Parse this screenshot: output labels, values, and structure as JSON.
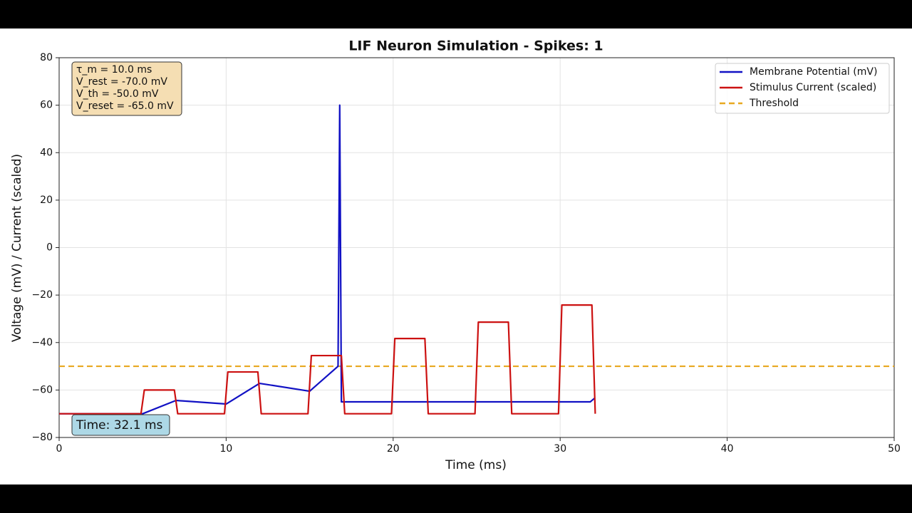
{
  "chart_data": {
    "type": "line",
    "title": "LIF Neuron Simulation - Spikes: 1",
    "x_label": "Time (ms)",
    "y_label": "Voltage (mV) / Current (scaled)",
    "xlim": [
      0,
      50
    ],
    "ylim": [
      -80,
      80
    ],
    "xticks": [
      0,
      10,
      20,
      30,
      40,
      50
    ],
    "yticks": [
      {
        "value": -80,
        "label": "−80"
      },
      {
        "value": -60,
        "label": "−60"
      },
      {
        "value": -40,
        "label": "−40"
      },
      {
        "value": -20,
        "label": "−20"
      },
      0,
      20,
      40,
      60,
      80
    ],
    "grid": true,
    "legend": "upper right",
    "series": [
      {
        "name": "Membrane Potential (mV)",
        "color": "#1111c4",
        "style": "solid",
        "x": [
          0,
          5,
          7,
          10,
          12,
          15,
          16.7,
          16.8,
          16.9,
          31.8,
          32.05
        ],
        "values": [
          -70,
          -70,
          -64.4,
          -65.9,
          -57.2,
          -60.5,
          -50,
          60,
          -65,
          -65,
          -63.5
        ]
      },
      {
        "name": "Stimulus Current (scaled)",
        "color": "#cc1111",
        "style": "solid",
        "x": [
          0,
          4.9,
          5.1,
          6.9,
          7.1,
          9.9,
          10.1,
          11.9,
          12.1,
          14.9,
          15.1,
          16.9,
          17.1,
          19.9,
          20.1,
          21.9,
          22.1,
          24.9,
          25.1,
          26.9,
          27.1,
          29.9,
          30.1,
          31.9,
          32.1
        ],
        "values": [
          -70,
          -70,
          -60,
          -60,
          -70,
          -70,
          -52.4,
          -52.4,
          -70,
          -70,
          -45.5,
          -45.5,
          -70,
          -70,
          -38.3,
          -38.3,
          -70,
          -70,
          -31.4,
          -31.4,
          -70,
          -70,
          -24.2,
          -24.2,
          -70
        ]
      },
      {
        "name": "Threshold",
        "color": "#e8a820",
        "style": "dashed",
        "x": [
          0,
          50
        ],
        "values": [
          -50,
          -50
        ]
      }
    ],
    "parameters": [
      "τ_m = 10.0 ms",
      "V_rest = -70.0 mV",
      "V_th = -50.0 mV",
      "V_reset = -65.0 mV"
    ],
    "time_label": "Time: 32.1 ms"
  }
}
